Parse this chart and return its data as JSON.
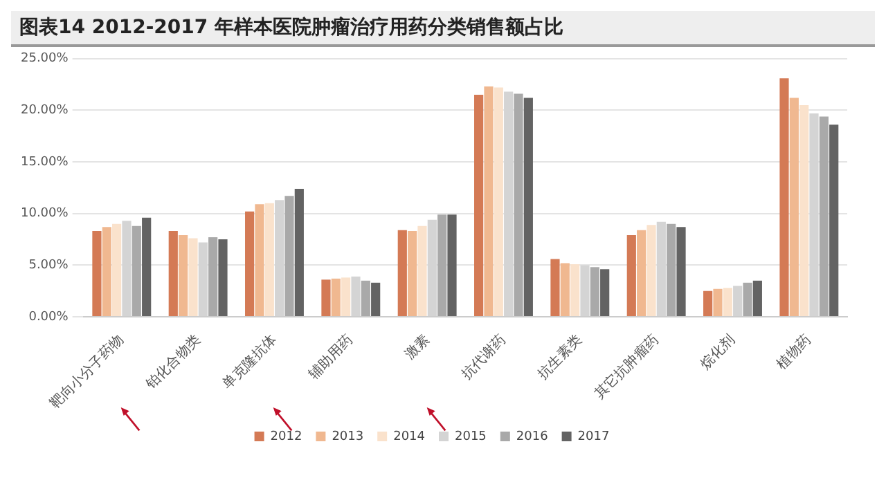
{
  "chart_data": {
    "type": "bar",
    "title": "图表14    2012-2017 年样本医院肿瘤治疗用药分类销售额占比",
    "categories": [
      "靶向小分子药物",
      "铂化合物类",
      "单克隆抗体",
      "辅助用药",
      "激素",
      "抗代谢药",
      "抗生素类",
      "其它抗肿瘤药",
      "烷化剂",
      "植物药"
    ],
    "series": [
      {
        "name": "2012",
        "color": "#d47a55",
        "values": [
          8.3,
          8.3,
          10.2,
          3.6,
          8.4,
          21.5,
          5.6,
          7.9,
          2.5,
          23.1
        ]
      },
      {
        "name": "2013",
        "color": "#f0b890",
        "values": [
          8.7,
          7.9,
          10.9,
          3.7,
          8.3,
          22.3,
          5.2,
          8.4,
          2.7,
          21.2
        ]
      },
      {
        "name": "2014",
        "color": "#fae2cc",
        "values": [
          9.0,
          7.6,
          11.0,
          3.8,
          8.8,
          22.2,
          5.1,
          8.9,
          2.8,
          20.5
        ]
      },
      {
        "name": "2015",
        "color": "#d4d4d4",
        "values": [
          9.3,
          7.2,
          11.3,
          3.9,
          9.4,
          21.8,
          5.0,
          9.2,
          3.0,
          19.7
        ]
      },
      {
        "name": "2016",
        "color": "#a9a9a9",
        "values": [
          8.8,
          7.7,
          11.7,
          3.5,
          9.9,
          21.6,
          4.8,
          9.0,
          3.3,
          19.4
        ]
      },
      {
        "name": "2017",
        "color": "#636363",
        "values": [
          9.6,
          7.5,
          12.4,
          3.3,
          9.9,
          21.2,
          4.6,
          8.7,
          3.5,
          18.6
        ]
      }
    ],
    "ylim": [
      0,
      25
    ],
    "yticks": [
      {
        "value": 0,
        "label": "0.00%"
      },
      {
        "value": 5,
        "label": "5.00%"
      },
      {
        "value": 10,
        "label": "10.00%"
      },
      {
        "value": 15,
        "label": "15.00%"
      },
      {
        "value": 20,
        "label": "20.00%"
      },
      {
        "value": 25,
        "label": "25.00%"
      }
    ],
    "grid": "y",
    "legend": "bottom"
  }
}
